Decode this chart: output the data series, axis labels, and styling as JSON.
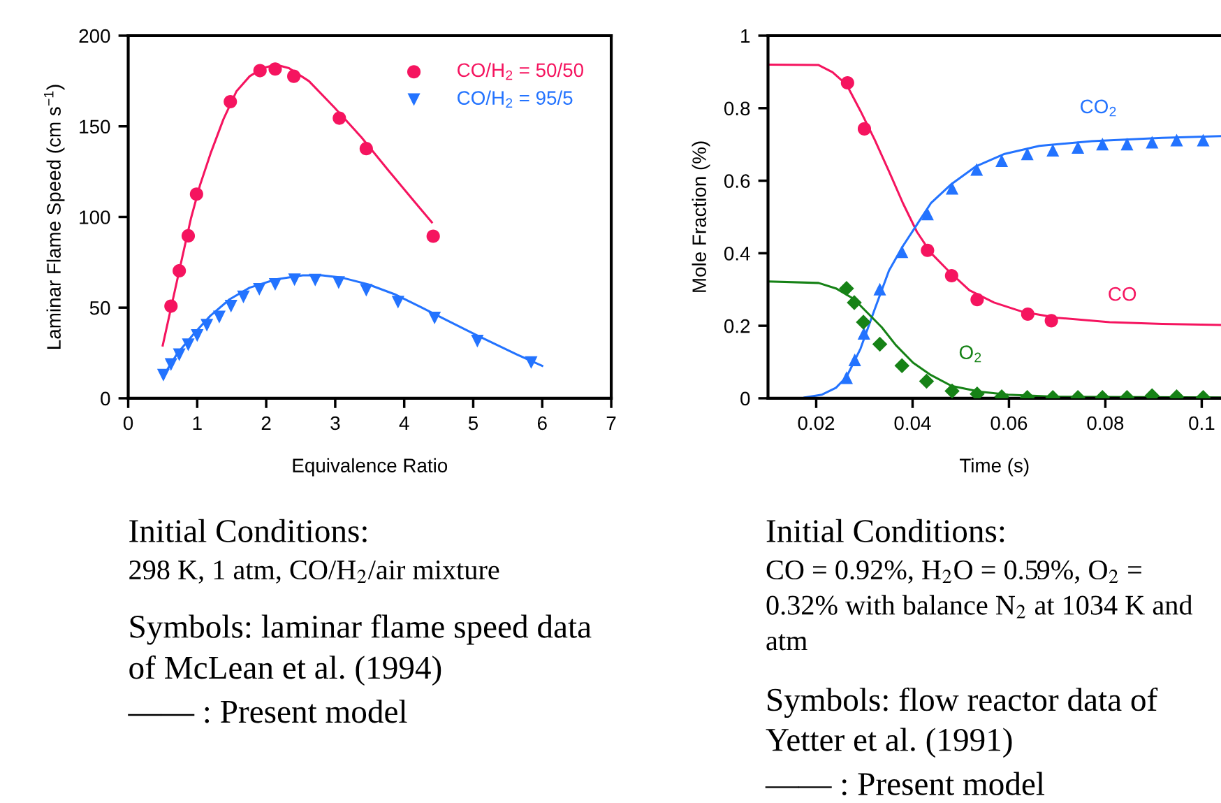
{
  "chart_data": [
    {
      "type": "scatter",
      "xlabel": "Equivalence Ratio",
      "ylabel": "Laminar Flame Speed (cm s$^{−1}$)",
      "xlim": [
        0,
        7
      ],
      "xticks": [
        0,
        1,
        2,
        3,
        4,
        5,
        6,
        7
      ],
      "ylim": [
        0,
        200
      ],
      "yticks": [
        0,
        50,
        100,
        150,
        200
      ],
      "grid": false,
      "legend": "top right",
      "series": [
        {
          "type": "line",
          "color": "#f5145f",
          "marker": "none",
          "line_style": "solid",
          "x": [
            0.5,
            0.76,
            0.91,
            1.04,
            1.2,
            1.38,
            1.57,
            1.76,
            1.95,
            2.14,
            2.33,
            2.62,
            2.99,
            3.38,
            3.77,
            4.15,
            4.4
          ],
          "values": [
            29.1,
            73.8,
            99.3,
            117.5,
            135.7,
            153.9,
            169.4,
            177.6,
            182.1,
            184.0,
            182.1,
            174.9,
            160.3,
            143.9,
            125.7,
            108.4,
            97.1
          ]
        },
        {
          "name": "CO/H$_{2}$ = 50/50",
          "color": "#f5145f",
          "marker": "circle",
          "x": [
            0.62,
            0.74,
            0.87,
            0.99,
            1.48,
            1.91,
            2.13,
            2.4,
            3.06,
            3.45,
            4.42
          ],
          "values": [
            50.8,
            70.3,
            89.6,
            112.6,
            163.6,
            180.7,
            181.6,
            177.6,
            154.5,
            137.7,
            89.4
          ]
        },
        {
          "type": "line",
          "color": "#2373ff",
          "marker": "none",
          "line_style": "solid",
          "x": [
            0.5,
            0.71,
            0.95,
            1.19,
            1.47,
            1.76,
            2.14,
            2.53,
            2.81,
            3.1,
            3.48,
            3.86,
            4.25,
            4.63,
            5.06,
            5.63,
            6.0
          ],
          "values": [
            11.8,
            24.6,
            35.5,
            45.5,
            54.6,
            61.0,
            65.6,
            67.8,
            67.8,
            66.5,
            62.8,
            57.4,
            50.1,
            42.8,
            34.6,
            24.2,
            17.9
          ]
        },
        {
          "name": "CO/H$_{2}$ = 95/5",
          "color": "#2373ff",
          "marker": "triangle",
          "x": [
            0.51,
            0.62,
            0.74,
            0.87,
            1.0,
            1.14,
            1.32,
            1.49,
            1.67,
            1.9,
            2.13,
            2.41,
            2.71,
            3.05,
            3.45,
            3.91,
            4.44,
            5.06,
            5.84
          ],
          "values": [
            12.8,
            18.6,
            24.0,
            29.5,
            34.6,
            40.3,
            44.8,
            50.8,
            55.9,
            60.1,
            62.8,
            65.4,
            65.2,
            63.8,
            59.6,
            53.0,
            44.3,
            31.5,
            19.7
          ]
        }
      ],
      "annotations": [
        "Initial Conditions:",
        "298 K, 1 atm, CO/H$_{2}$/air mixture",
        "Symbols: laminar flame speed data",
        "of McLean et al. (1994)",
        "—— : Present model"
      ]
    },
    {
      "type": "scatter",
      "xlabel": "Time (s)",
      "ylabel": "Mole Fraction (%)",
      "xlim": [
        0.01,
        0.104
      ],
      "xticks": [
        0.02,
        0.04,
        0.06,
        0.08,
        0.1
      ],
      "ylim": [
        0,
        1
      ],
      "yticks": [
        0,
        0.2,
        0.4,
        0.6,
        0.8,
        1
      ],
      "grid": false,
      "legend": false,
      "series": [
        {
          "type": "line",
          "color": "#f5145f",
          "marker": "none",
          "line_style": "solid",
          "x": [
            0.0101,
            0.0205,
            0.0234,
            0.0263,
            0.0292,
            0.0321,
            0.0351,
            0.038,
            0.0409,
            0.0438,
            0.0474,
            0.0518,
            0.0569,
            0.0627,
            0.07,
            0.0809,
            0.0918,
            0.104
          ],
          "values": [
            0.92,
            0.919,
            0.899,
            0.865,
            0.792,
            0.714,
            0.626,
            0.538,
            0.459,
            0.401,
            0.352,
            0.298,
            0.264,
            0.239,
            0.222,
            0.21,
            0.205,
            0.202
          ]
        },
        {
          "name": "CO",
          "color": "#f5145f",
          "marker": "circle",
          "x": [
            0.0265,
            0.03,
            0.0431,
            0.0481,
            0.0534,
            0.0639,
            0.0688
          ],
          "values": [
            0.87,
            0.743,
            0.408,
            0.338,
            0.272,
            0.232,
            0.214
          ]
        },
        {
          "type": "line",
          "color": "#2373ff",
          "marker": "none",
          "line_style": "solid",
          "x": [
            0.0176,
            0.0212,
            0.0241,
            0.0263,
            0.0292,
            0.0321,
            0.0351,
            0.038,
            0.0409,
            0.0438,
            0.0481,
            0.0532,
            0.0591,
            0.0663,
            0.0772,
            0.0918,
            0.104
          ],
          "values": [
            0.002,
            0.01,
            0.029,
            0.059,
            0.137,
            0.244,
            0.352,
            0.42,
            0.479,
            0.538,
            0.591,
            0.64,
            0.674,
            0.696,
            0.709,
            0.718,
            0.723
          ]
        },
        {
          "name": "CO$_{2}$",
          "color": "#2373ff",
          "marker": "triangle",
          "x": [
            0.0263,
            0.028,
            0.0299,
            0.0332,
            0.0378,
            0.0431,
            0.0482,
            0.0533,
            0.0585,
            0.0638,
            0.0691,
            0.0743,
            0.0794,
            0.0845,
            0.0897,
            0.0948,
            0.1003
          ],
          "values": [
            0.057,
            0.106,
            0.179,
            0.301,
            0.404,
            0.508,
            0.579,
            0.631,
            0.655,
            0.674,
            0.684,
            0.692,
            0.701,
            0.701,
            0.706,
            0.712,
            0.712
          ]
        },
        {
          "type": "line",
          "color": "#168216",
          "marker": "none",
          "line_style": "solid",
          "x": [
            0.0101,
            0.0205,
            0.0241,
            0.0278,
            0.0307,
            0.0336,
            0.0365,
            0.0401,
            0.0438,
            0.0481,
            0.054,
            0.0598,
            0.07,
            0.104
          ],
          "values": [
            0.322,
            0.318,
            0.303,
            0.274,
            0.235,
            0.196,
            0.147,
            0.098,
            0.064,
            0.034,
            0.018,
            0.01,
            0.004,
            0.002
          ]
        },
        {
          "name": "O$_{2}$",
          "color": "#168216",
          "marker": "diamond",
          "x": [
            0.0263,
            0.0279,
            0.0298,
            0.0332,
            0.0378,
            0.0429,
            0.0482,
            0.0534,
            0.0585,
            0.0638,
            0.0691,
            0.0743,
            0.0794,
            0.0845,
            0.0897,
            0.0948,
            0.1003
          ],
          "values": [
            0.303,
            0.264,
            0.21,
            0.149,
            0.09,
            0.047,
            0.02,
            0.012,
            0.004,
            0.002,
            0.002,
            0.002,
            0.002,
            0.002,
            0.007,
            0.004,
            0.002
          ]
        }
      ],
      "annotations": [
        "Initial Conditions:",
        "CO = 0.92%, H$_{2}$O = 0.59%, O$_{2}$ =",
        "0.32% with balance N$_{2}$ at 1034 K and",
        "atm",
        "Symbols: flow reactor data of",
        "Yetter et al. (1991)",
        "—— : Present model"
      ]
    }
  ]
}
